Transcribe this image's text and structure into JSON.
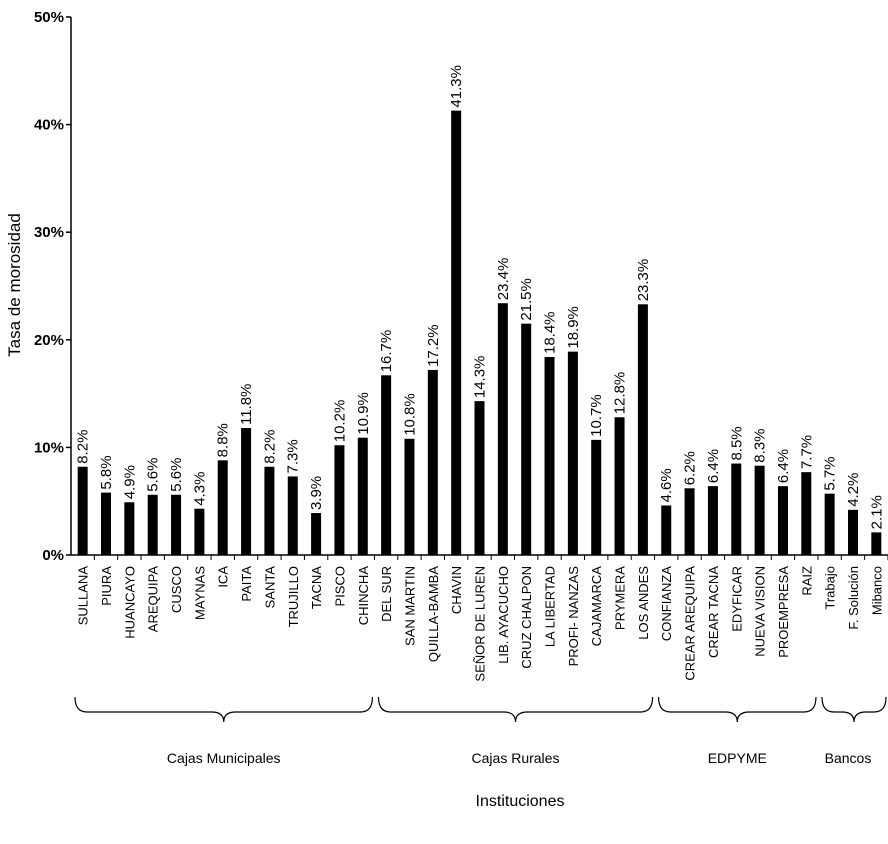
{
  "chart_data": {
    "type": "bar",
    "y_label": "Tasa de morosidad",
    "x_label": "Instituciones",
    "categories": [
      "SULLANA",
      "PIURA",
      "HUANCAYO",
      "AREQUIPA",
      "CUSCO",
      "MAYNAS",
      "ICA",
      "PAITA",
      "SANTA",
      "TRUJILLO",
      "TACNA",
      "PISCO",
      "CHINCHA",
      "DEL SUR",
      "SAN MARTIN",
      "QUILLA-BAMBA",
      "CHAVIN",
      "SEÑOR DE LUREN",
      "LIB. AYACUCHO",
      "CRUZ CHALPON",
      "LA LIBERTAD",
      "PROFI- NANZAS",
      "CAJAMARCA",
      "PRYMERA",
      "LOS ANDES",
      "CONFIANZA",
      "CREAR AREQUIPA",
      "CREAR TACNA",
      "EDYFICAR",
      "NUEVA VISION",
      "PROEMPRESA",
      "RAIZ",
      "Trabajo",
      "F. Solución",
      "Mibanco"
    ],
    "values": [
      8.2,
      5.8,
      4.9,
      5.6,
      5.6,
      4.3,
      8.8,
      11.8,
      8.2,
      7.3,
      3.9,
      10.2,
      10.9,
      16.7,
      10.8,
      17.2,
      41.3,
      14.3,
      23.4,
      21.5,
      18.4,
      18.9,
      10.7,
      12.8,
      23.3,
      4.6,
      6.2,
      6.4,
      8.5,
      8.3,
      6.4,
      7.7,
      5.7,
      4.2,
      2.1
    ],
    "value_labels": [
      "8.2%",
      "5.8%",
      "4.9%",
      "5.6%",
      "5.6%",
      "4.3%",
      "8.8%",
      "11.8%",
      "8.2%",
      "7.3%",
      "3.9%",
      "10.2%",
      "10.9%",
      "16.7%",
      "10.8%",
      "17.2%",
      "41.3%",
      "14.3%",
      "23.4%",
      "21.5%",
      "18.4%",
      "18.9%",
      "10.7%",
      "12.8%",
      "23.3%",
      "4.6%",
      "6.2%",
      "6.4%",
      "8.5%",
      "8.3%",
      "6.4%",
      "7.7%",
      "5.7%",
      "4.2%",
      "2.1%"
    ],
    "color": "#000000",
    "ylim": [
      0,
      50
    ],
    "yticks": [
      {
        "value": 0,
        "label": "0%"
      },
      {
        "value": 10,
        "label": "10%"
      },
      {
        "value": 20,
        "label": "20%"
      },
      {
        "value": 30,
        "label": "30%"
      },
      {
        "value": 40,
        "label": "40%"
      },
      {
        "value": 50,
        "label": "50%"
      }
    ],
    "groups": [
      {
        "label": "Cajas Municipales",
        "size": 13
      },
      {
        "label": "Cajas Rurales",
        "size": 12
      },
      {
        "label": "EDPYME",
        "size": 7
      },
      {
        "label": "Bancos",
        "size": 3
      }
    ]
  }
}
